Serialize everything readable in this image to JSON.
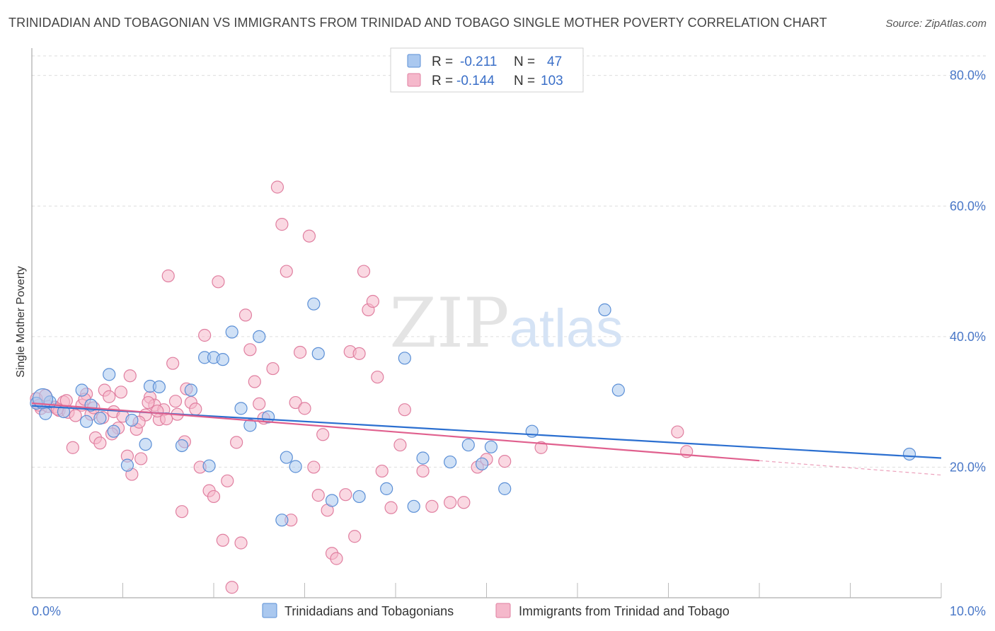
{
  "header": {
    "title": "TRINIDADIAN AND TOBAGONIAN VS IMMIGRANTS FROM TRINIDAD AND TOBAGO SINGLE MOTHER POVERTY CORRELATION CHART",
    "source": "Source: ZipAtlas.com"
  },
  "watermark": {
    "zip": "ZIP",
    "atlas": "atlas"
  },
  "colors": {
    "blue_fill": "#aac8ef",
    "blue_stroke": "#5b8fd6",
    "blue_line": "#2b6fd0",
    "pink_fill": "#f5b8cb",
    "pink_stroke": "#e07fa0",
    "pink_line": "#e0608e",
    "axis_label": "#4a78c8",
    "grid": "#dddddd"
  },
  "legend": {
    "rows": [
      {
        "r_label": "R =",
        "r_value": "-0.211",
        "n_label": "N =",
        "n_value": "47",
        "series": "blue"
      },
      {
        "r_label": "R =",
        "r_value": "-0.144",
        "n_label": "N =",
        "n_value": "103",
        "series": "pink"
      }
    ]
  },
  "chart_data": {
    "type": "scatter",
    "title": "TRINIDADIAN AND TOBAGONIAN VS IMMIGRANTS FROM TRINIDAD AND TOBAGO SINGLE MOTHER POVERTY CORRELATION CHART",
    "xlabel": "",
    "ylabel": "Single Mother Poverty",
    "xlim": [
      0,
      10
    ],
    "ylim": [
      0,
      83
    ],
    "x_ticks": [
      0,
      10
    ],
    "x_tick_labels": [
      "0.0%",
      "10.0%"
    ],
    "y_ticks": [
      20,
      40,
      60,
      80
    ],
    "y_tick_labels": [
      "20.0%",
      "40.0%",
      "60.0%",
      "80.0%"
    ],
    "grid": true,
    "legend_position": "bottom",
    "series": [
      {
        "name": "Trinidadians and Tobagonians",
        "color": "#aac8ef",
        "trend": {
          "x": [
            0,
            10
          ],
          "y": [
            29.4,
            21.4
          ]
        },
        "points": [
          [
            0.05,
            29.8
          ],
          [
            0.15,
            28.2
          ],
          [
            0.2,
            30.0
          ],
          [
            0.35,
            28.5
          ],
          [
            0.55,
            31.8
          ],
          [
            0.6,
            27.0
          ],
          [
            0.65,
            29.5
          ],
          [
            0.75,
            27.5
          ],
          [
            0.85,
            34.2
          ],
          [
            0.9,
            25.5
          ],
          [
            1.05,
            20.3
          ],
          [
            1.1,
            27.2
          ],
          [
            1.25,
            23.5
          ],
          [
            1.3,
            32.4
          ],
          [
            1.4,
            32.3
          ],
          [
            1.65,
            23.3
          ],
          [
            1.75,
            31.8
          ],
          [
            1.9,
            36.8
          ],
          [
            1.95,
            20.2
          ],
          [
            2.0,
            36.8
          ],
          [
            2.1,
            36.5
          ],
          [
            2.2,
            40.7
          ],
          [
            2.3,
            29.0
          ],
          [
            2.4,
            26.4
          ],
          [
            2.5,
            40.0
          ],
          [
            2.6,
            27.7
          ],
          [
            2.75,
            11.9
          ],
          [
            2.8,
            21.5
          ],
          [
            2.9,
            20.1
          ],
          [
            3.1,
            45.0
          ],
          [
            3.15,
            37.4
          ],
          [
            3.3,
            14.9
          ],
          [
            3.6,
            15.5
          ],
          [
            3.9,
            16.7
          ],
          [
            4.1,
            36.7
          ],
          [
            4.2,
            14.0
          ],
          [
            4.3,
            21.4
          ],
          [
            4.6,
            20.8
          ],
          [
            4.8,
            23.4
          ],
          [
            4.95,
            20.5
          ],
          [
            5.05,
            23.1
          ],
          [
            5.2,
            16.7
          ],
          [
            5.5,
            25.5
          ],
          [
            6.3,
            44.1
          ],
          [
            6.45,
            31.8
          ],
          [
            9.65,
            22.0
          ],
          [
            0.12,
            30.5
          ]
        ]
      },
      {
        "name": "Immigrants from Trinidad and Tobago",
        "color": "#f5b8cb",
        "trend": {
          "x": [
            0,
            8.0
          ],
          "y": [
            29.8,
            21.0
          ]
        },
        "trend_dashed": {
          "x": [
            8.0,
            10
          ],
          "y": [
            21.0,
            18.8
          ]
        },
        "points": [
          [
            0.05,
            30.5
          ],
          [
            0.1,
            29.0
          ],
          [
            0.15,
            31.0
          ],
          [
            0.25,
            29.2
          ],
          [
            0.3,
            28.7
          ],
          [
            0.35,
            30.0
          ],
          [
            0.4,
            28.4
          ],
          [
            0.45,
            23.0
          ],
          [
            0.55,
            29.5
          ],
          [
            0.6,
            31.2
          ],
          [
            0.65,
            28.1
          ],
          [
            0.7,
            24.5
          ],
          [
            0.75,
            23.7
          ],
          [
            0.8,
            31.8
          ],
          [
            0.85,
            30.8
          ],
          [
            0.9,
            28.5
          ],
          [
            0.95,
            26.0
          ],
          [
            1.0,
            27.8
          ],
          [
            1.05,
            21.7
          ],
          [
            1.1,
            18.9
          ],
          [
            1.15,
            25.8
          ],
          [
            1.2,
            21.3
          ],
          [
            1.25,
            28.0
          ],
          [
            1.3,
            30.7
          ],
          [
            1.35,
            29.5
          ],
          [
            1.4,
            27.3
          ],
          [
            1.45,
            28.8
          ],
          [
            1.5,
            49.3
          ],
          [
            1.55,
            35.9
          ],
          [
            1.6,
            28.1
          ],
          [
            1.65,
            13.2
          ],
          [
            1.7,
            32.0
          ],
          [
            1.75,
            29.9
          ],
          [
            1.8,
            28.9
          ],
          [
            1.85,
            20.0
          ],
          [
            1.9,
            40.2
          ],
          [
            1.95,
            16.4
          ],
          [
            2.0,
            15.5
          ],
          [
            2.05,
            48.4
          ],
          [
            2.1,
            8.8
          ],
          [
            2.15,
            17.9
          ],
          [
            2.2,
            1.6
          ],
          [
            2.25,
            23.8
          ],
          [
            2.3,
            8.4
          ],
          [
            2.35,
            43.3
          ],
          [
            2.4,
            38.0
          ],
          [
            2.45,
            33.1
          ],
          [
            2.5,
            29.7
          ],
          [
            2.55,
            27.5
          ],
          [
            2.65,
            35.1
          ],
          [
            2.7,
            62.9
          ],
          [
            2.75,
            57.2
          ],
          [
            2.8,
            50.0
          ],
          [
            2.85,
            11.9
          ],
          [
            2.9,
            29.9
          ],
          [
            2.95,
            37.6
          ],
          [
            3.0,
            29.0
          ],
          [
            3.05,
            55.4
          ],
          [
            3.1,
            20.0
          ],
          [
            3.15,
            15.7
          ],
          [
            3.2,
            25.0
          ],
          [
            3.25,
            13.4
          ],
          [
            3.3,
            6.8
          ],
          [
            3.35,
            6.0
          ],
          [
            3.45,
            15.8
          ],
          [
            3.5,
            37.7
          ],
          [
            3.55,
            9.4
          ],
          [
            3.6,
            37.4
          ],
          [
            3.65,
            50.0
          ],
          [
            3.7,
            44.1
          ],
          [
            3.75,
            45.4
          ],
          [
            3.8,
            33.8
          ],
          [
            3.85,
            19.4
          ],
          [
            3.95,
            13.8
          ],
          [
            4.05,
            23.4
          ],
          [
            4.1,
            28.8
          ],
          [
            4.3,
            19.4
          ],
          [
            4.4,
            14.0
          ],
          [
            4.6,
            14.6
          ],
          [
            4.75,
            14.6
          ],
          [
            4.9,
            20.0
          ],
          [
            5.0,
            21.2
          ],
          [
            5.2,
            20.9
          ],
          [
            5.6,
            23.0
          ],
          [
            7.1,
            25.4
          ],
          [
            7.2,
            22.4
          ],
          [
            0.08,
            29.5
          ],
          [
            0.18,
            29.3
          ],
          [
            0.28,
            28.9
          ],
          [
            0.38,
            30.2
          ],
          [
            0.48,
            27.9
          ],
          [
            0.58,
            30.4
          ],
          [
            0.68,
            29.1
          ],
          [
            0.78,
            27.6
          ],
          [
            0.88,
            25.1
          ],
          [
            0.98,
            31.5
          ],
          [
            1.08,
            34.0
          ],
          [
            1.18,
            26.9
          ],
          [
            1.28,
            29.9
          ],
          [
            1.38,
            28.6
          ],
          [
            1.48,
            27.4
          ],
          [
            1.58,
            30.1
          ],
          [
            1.68,
            23.9
          ]
        ]
      }
    ]
  }
}
